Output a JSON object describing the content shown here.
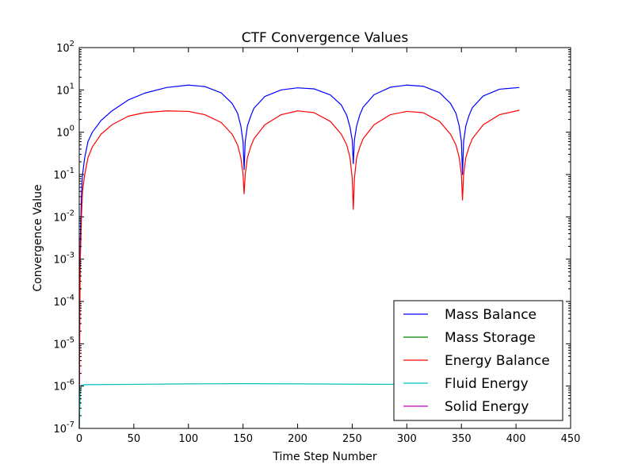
{
  "chart_data": {
    "type": "line",
    "title": "CTF Convergence Values",
    "xlabel": "Time Step Number",
    "ylabel": "Convergence Value",
    "y_scale": "log",
    "xlim": [
      0,
      450
    ],
    "ylim": [
      1e-07,
      100
    ],
    "x_ticks": [
      "0",
      "50",
      "100",
      "150",
      "200",
      "250",
      "300",
      "350",
      "400",
      "450"
    ],
    "y_ticks": [
      {
        "base": "10",
        "exp": "-7"
      },
      {
        "base": "10",
        "exp": "-6"
      },
      {
        "base": "10",
        "exp": "-5"
      },
      {
        "base": "10",
        "exp": "-4"
      },
      {
        "base": "10",
        "exp": "-3"
      },
      {
        "base": "10",
        "exp": "-2"
      },
      {
        "base": "10",
        "exp": "-1"
      },
      {
        "base": "10",
        "exp": "0"
      },
      {
        "base": "10",
        "exp": "1"
      },
      {
        "base": "10",
        "exp": "2"
      }
    ],
    "grid": false,
    "legend_position": "bottom-right",
    "series": [
      {
        "name": "Mass Balance",
        "color": "#0000ff",
        "x": [
          0,
          0.5,
          1,
          2,
          3,
          5,
          8,
          12,
          20,
          30,
          45,
          60,
          80,
          100,
          115,
          130,
          140,
          145,
          148,
          150,
          151,
          152,
          154,
          157,
          160,
          170,
          185,
          200,
          215,
          230,
          240,
          245,
          248,
          250,
          251,
          252,
          254,
          257,
          260,
          270,
          285,
          300,
          315,
          330,
          340,
          345,
          348,
          350,
          351,
          352,
          354,
          357,
          360,
          370,
          385,
          403
        ],
        "y": [
          1e-07,
          0.0001,
          0.003,
          0.03,
          0.1,
          0.25,
          0.6,
          1.0,
          1.9,
          3.2,
          5.8,
          8.4,
          11.4,
          13.0,
          12.0,
          8.5,
          4.8,
          2.8,
          1.4,
          0.6,
          0.13,
          0.6,
          1.4,
          2.4,
          3.7,
          7.0,
          10.0,
          11.2,
          10.6,
          7.6,
          4.4,
          2.5,
          1.3,
          0.65,
          0.18,
          0.65,
          1.4,
          2.6,
          3.9,
          7.7,
          11.6,
          13.0,
          12.2,
          8.6,
          4.8,
          2.8,
          1.4,
          0.6,
          0.1,
          0.6,
          1.4,
          2.5,
          3.8,
          7.2,
          10.4,
          11.4
        ]
      },
      {
        "name": "Mass Storage",
        "color": "#008000",
        "x": [],
        "y": []
      },
      {
        "name": "Energy Balance",
        "color": "#ff0000",
        "x": [
          0,
          0.5,
          1,
          2,
          3,
          5,
          8,
          12,
          20,
          30,
          45,
          60,
          80,
          100,
          115,
          130,
          140,
          145,
          148,
          150,
          151,
          152,
          154,
          157,
          160,
          170,
          185,
          200,
          215,
          230,
          240,
          245,
          248,
          250,
          251,
          252,
          254,
          257,
          260,
          270,
          285,
          300,
          315,
          330,
          340,
          345,
          348,
          350,
          351,
          352,
          354,
          357,
          360,
          370,
          385,
          403
        ],
        "y": [
          1e-07,
          5e-05,
          0.001,
          0.01,
          0.04,
          0.1,
          0.25,
          0.45,
          0.9,
          1.5,
          2.4,
          2.9,
          3.2,
          3.1,
          2.6,
          1.7,
          0.9,
          0.5,
          0.25,
          0.1,
          0.035,
          0.1,
          0.25,
          0.45,
          0.7,
          1.5,
          2.6,
          3.2,
          2.9,
          1.8,
          0.9,
          0.5,
          0.25,
          0.08,
          0.015,
          0.08,
          0.25,
          0.45,
          0.7,
          1.5,
          2.6,
          3.1,
          2.9,
          1.8,
          0.9,
          0.5,
          0.25,
          0.1,
          0.025,
          0.1,
          0.25,
          0.45,
          0.7,
          1.5,
          2.6,
          3.3
        ]
      },
      {
        "name": "Fluid Energy",
        "color": "#00bfbf",
        "x": [
          0,
          0.5,
          1,
          2,
          5,
          50,
          100,
          150,
          200,
          250,
          300,
          350,
          403
        ],
        "y": [
          1e-07,
          3e-07,
          8e-07,
          1.05e-06,
          1.08e-06,
          1.1e-06,
          1.13e-06,
          1.14e-06,
          1.13e-06,
          1.11e-06,
          1.1e-06,
          1.12e-06,
          1.12e-06
        ]
      },
      {
        "name": "Solid Energy",
        "color": "#bf00bf",
        "x": [],
        "y": []
      }
    ]
  }
}
